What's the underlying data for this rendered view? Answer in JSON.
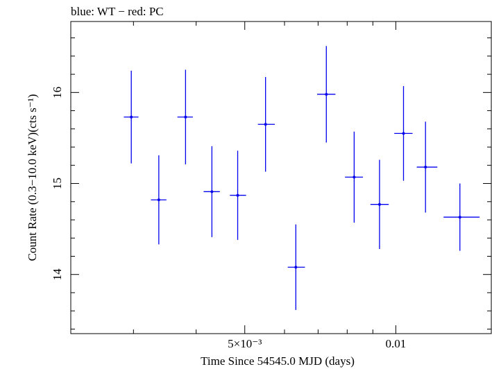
{
  "chart_data": {
    "type": "scatter",
    "title": "blue: WT − red: PC",
    "xlabel": "Time Since 54545.0 MJD (days)",
    "ylabel": "Count Rate (0.3−10.0 keV)(cts s⁻¹)",
    "x_scale": "log",
    "xlim": [
      0.00225,
      0.0155
    ],
    "ylim": [
      13.35,
      16.78
    ],
    "x_ticks_major": [
      {
        "value": 0.005,
        "label": "5×10⁻³"
      },
      {
        "value": 0.01,
        "label": "0.01"
      }
    ],
    "x_ticks_minor": [
      0.003,
      0.004,
      0.006,
      0.007,
      0.008,
      0.009
    ],
    "y_ticks_major": [
      {
        "value": 14,
        "label": "14"
      },
      {
        "value": 15,
        "label": "15"
      },
      {
        "value": 16,
        "label": "16"
      }
    ],
    "y_ticks_minor": [
      13.4,
      13.6,
      13.8,
      14.2,
      14.4,
      14.6,
      14.8,
      15.2,
      15.4,
      15.6,
      15.8,
      16.2,
      16.4,
      16.6
    ],
    "series": [
      {
        "color": "#0000ee",
        "points": [
          {
            "x": 0.00297,
            "x_lo": 0.00287,
            "x_hi": 0.00307,
            "y": 15.73,
            "y_err": 0.51
          },
          {
            "x": 0.00337,
            "x_lo": 0.00325,
            "x_hi": 0.00349,
            "y": 14.82,
            "y_err": 0.49
          },
          {
            "x": 0.00381,
            "x_lo": 0.00367,
            "x_hi": 0.00394,
            "y": 15.73,
            "y_err": 0.52
          },
          {
            "x": 0.0043,
            "x_lo": 0.00414,
            "x_hi": 0.00446,
            "y": 14.91,
            "y_err": 0.5
          },
          {
            "x": 0.00484,
            "x_lo": 0.00467,
            "x_hi": 0.00503,
            "y": 14.87,
            "y_err": 0.49
          },
          {
            "x": 0.0055,
            "x_lo": 0.00531,
            "x_hi": 0.00574,
            "y": 15.65,
            "y_err": 0.52
          },
          {
            "x": 0.00632,
            "x_lo": 0.00609,
            "x_hi": 0.00659,
            "y": 14.08,
            "y_err": 0.47
          },
          {
            "x": 0.00727,
            "x_lo": 0.00697,
            "x_hi": 0.00758,
            "y": 15.98,
            "y_err": 0.53
          },
          {
            "x": 0.00826,
            "x_lo": 0.00792,
            "x_hi": 0.0086,
            "y": 15.07,
            "y_err": 0.5
          },
          {
            "x": 0.00928,
            "x_lo": 0.0089,
            "x_hi": 0.00968,
            "y": 14.77,
            "y_err": 0.49
          },
          {
            "x": 0.01036,
            "x_lo": 0.00993,
            "x_hi": 0.0108,
            "y": 15.55,
            "y_err": 0.52
          },
          {
            "x": 0.01146,
            "x_lo": 0.01101,
            "x_hi": 0.0121,
            "y": 15.18,
            "y_err": 0.5
          },
          {
            "x": 0.01342,
            "x_lo": 0.01245,
            "x_hi": 0.01469,
            "y": 14.63,
            "y_err": 0.37
          }
        ]
      }
    ]
  }
}
